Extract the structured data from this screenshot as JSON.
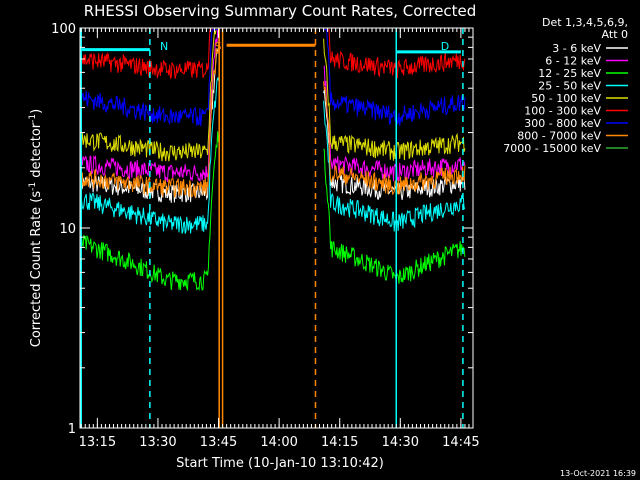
{
  "chart_data": {
    "type": "line",
    "title": "RHESSI Observing Summary Count Rates, Corrected",
    "ylabel_main": "Corrected Count Rate (s",
    "ylabel_sup1": "-1",
    "ylabel_mid": " detector",
    "ylabel_sup2": "-1",
    "ylabel_end": ")",
    "xlabel": "Start Time (10-Jan-10 13:10:42)",
    "yscale": "log",
    "ylim": [
      1,
      100
    ],
    "y_ticks": [
      "1",
      "10",
      "100"
    ],
    "x_ticks": [
      "13:15",
      "13:30",
      "13:45",
      "14:00",
      "14:15",
      "14:30",
      "14:45"
    ],
    "xlim": [
      "13:10:42",
      "14:48:00"
    ],
    "legend_title_1": "Det 1,3,4,5,6,9,",
    "legend_title_2": "Att 0",
    "timestamp": "13-Oct-2021 16:39",
    "segments": [
      [
        "13:10:42",
        "13:45:10"
      ],
      [
        "14:11:00",
        "14:46:00"
      ]
    ],
    "series": [
      {
        "name": "3 - 6 keV",
        "color": "#ffffff",
        "start_level": 17,
        "min_level": 15,
        "end_level": 17
      },
      {
        "name": "6 - 12 keV",
        "color": "#ff00ff",
        "start_level": 21,
        "min_level": 19,
        "end_level": 21
      },
      {
        "name": "12 - 25 keV",
        "color": "#00ff00",
        "start_level": 8.5,
        "min_level": 5.5,
        "end_level": 8
      },
      {
        "name": "25 - 50 keV",
        "color": "#00ffff",
        "start_level": 14,
        "min_level": 10.5,
        "end_level": 13.5
      },
      {
        "name": "50 - 100 keV",
        "color": "#dddd00",
        "start_level": 28,
        "min_level": 24,
        "end_level": 27
      },
      {
        "name": "100 - 300 keV",
        "color": "#ff0000",
        "start_level": 70,
        "min_level": 62,
        "end_level": 70
      },
      {
        "name": "300 - 800 keV",
        "color": "#0000ff",
        "start_level": 45,
        "min_level": 36,
        "end_level": 43
      },
      {
        "name": "800 - 7000 keV",
        "color": "#ff8800",
        "start_level": 18,
        "min_level": 16,
        "end_level": 19
      },
      {
        "name": "7000 - 15000 keV",
        "color": "#33aa33",
        "start_level": 0,
        "min_level": 0,
        "end_level": 0
      }
    ],
    "annotations": [
      {
        "text": "N",
        "time": "13:30:30",
        "color": "#00ffff"
      },
      {
        "text": "S",
        "time": "13:44:00",
        "color": "#ff8800"
      },
      {
        "text": "D",
        "time": "14:40:00",
        "color": "#00ffff"
      }
    ],
    "bars": [
      {
        "color": "#00ffff",
        "from": "13:11:00",
        "to": "13:28:00",
        "level": 78
      },
      {
        "color": "#ff8800",
        "from": "13:47:00",
        "to": "14:09:00",
        "level": 82
      },
      {
        "color": "#00ffff",
        "from": "14:29:00",
        "to": "14:45:00",
        "level": 76
      }
    ],
    "vlines": [
      {
        "time": "13:11:00",
        "color": "#00ffff",
        "style": "solid"
      },
      {
        "time": "13:28:00",
        "color": "#00ffff",
        "style": "dashed"
      },
      {
        "time": "13:45:10",
        "color": "#ff8800",
        "style": "solid"
      },
      {
        "time": "13:46:00",
        "color": "#ff8800",
        "style": "solid"
      },
      {
        "time": "14:09:00",
        "color": "#ff8800",
        "style": "dashed"
      },
      {
        "time": "14:29:00",
        "color": "#00ffff",
        "style": "solid"
      },
      {
        "time": "14:45:30",
        "color": "#00ffff",
        "style": "dashed"
      }
    ]
  }
}
